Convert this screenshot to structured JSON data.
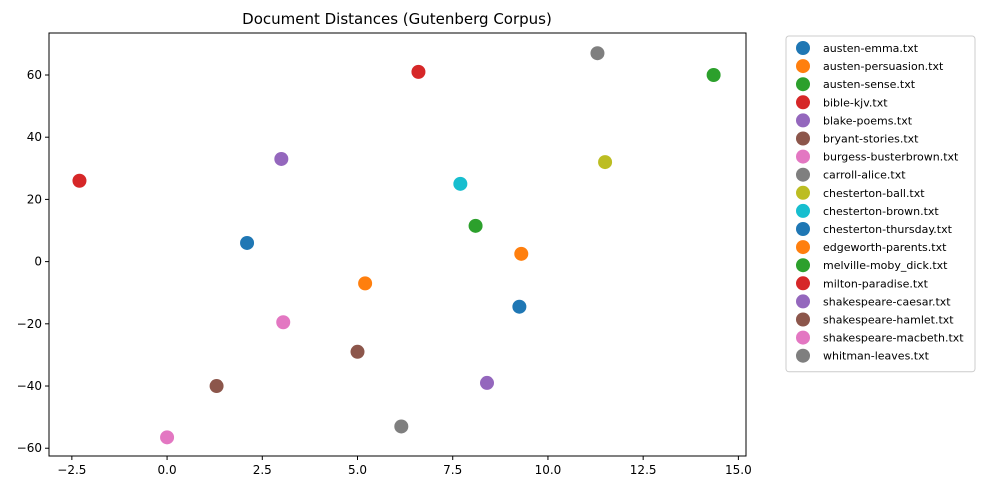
{
  "chart_data": {
    "type": "scatter",
    "title": "Document Distances (Gutenberg Corpus)",
    "xlabel": "",
    "ylabel": "",
    "xlim": [
      -3.1,
      15.2
    ],
    "ylim": [
      -62.5,
      73.5
    ],
    "xticks": [
      -2.5,
      0.0,
      2.5,
      5.0,
      7.5,
      10.0,
      12.5,
      15.0
    ],
    "xtick_labels": [
      "−2.5",
      "0.0",
      "2.5",
      "5.0",
      "7.5",
      "10.0",
      "12.5",
      "15.0"
    ],
    "yticks": [
      -60,
      -40,
      -20,
      0,
      20,
      40,
      60
    ],
    "ytick_labels": [
      "−60",
      "−40",
      "−20",
      "0",
      "20",
      "40",
      "60"
    ],
    "grid": false,
    "legend_placement": "outside-right",
    "series": [
      {
        "name": "austen-emma.txt",
        "color": "#1f77b4",
        "x": 2.1,
        "y": 6
      },
      {
        "name": "austen-persuasion.txt",
        "color": "#ff7f0e",
        "x": 5.2,
        "y": -7
      },
      {
        "name": "austen-sense.txt",
        "color": "#2ca02c",
        "x": 14.35,
        "y": 60
      },
      {
        "name": "bible-kjv.txt",
        "color": "#d62728",
        "x": -2.3,
        "y": 26
      },
      {
        "name": "blake-poems.txt",
        "color": "#9467bd",
        "x": 3.0,
        "y": 33
      },
      {
        "name": "bryant-stories.txt",
        "color": "#8c564b",
        "x": 1.3,
        "y": -40
      },
      {
        "name": "burgess-busterbrown.txt",
        "color": "#e377c2",
        "x": 0.0,
        "y": -56.5
      },
      {
        "name": "carroll-alice.txt",
        "color": "#7f7f7f",
        "x": 11.3,
        "y": 67
      },
      {
        "name": "chesterton-ball.txt",
        "color": "#bcbd22",
        "x": 11.5,
        "y": 32
      },
      {
        "name": "chesterton-brown.txt",
        "color": "#17becf",
        "x": 7.7,
        "y": 25
      },
      {
        "name": "chesterton-thursday.txt",
        "color": "#1f77b4",
        "x": 9.25,
        "y": -14.5
      },
      {
        "name": "edgeworth-parents.txt",
        "color": "#ff7f0e",
        "x": 9.3,
        "y": 2.5
      },
      {
        "name": "melville-moby_dick.txt",
        "color": "#2ca02c",
        "x": 8.1,
        "y": 11.5
      },
      {
        "name": "milton-paradise.txt",
        "color": "#d62728",
        "x": 6.6,
        "y": 61
      },
      {
        "name": "shakespeare-caesar.txt",
        "color": "#9467bd",
        "x": 8.4,
        "y": -39
      },
      {
        "name": "shakespeare-hamlet.txt",
        "color": "#8c564b",
        "x": 5.0,
        "y": -29
      },
      {
        "name": "shakespeare-macbeth.txt",
        "color": "#e377c2",
        "x": 3.05,
        "y": -19.5
      },
      {
        "name": "whitman-leaves.txt",
        "color": "#7f7f7f",
        "x": 6.15,
        "y": -53
      }
    ]
  }
}
